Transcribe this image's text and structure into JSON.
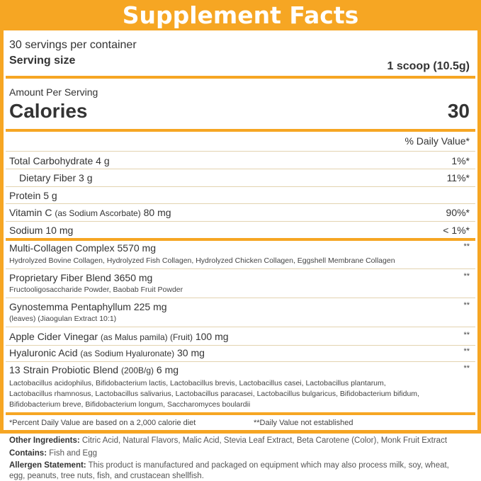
{
  "title": "Supplement Facts",
  "servings_per_container": "30 servings per container",
  "serving_size_label": "Serving size",
  "serving_size_value": "1 scoop (10.5g)",
  "amount_per_serving": "Amount Per Serving",
  "calories_label": "Calories",
  "calories_value": "30",
  "dv_header": "% Daily Value*",
  "nutrients": [
    {
      "name": "Total Carbohydrate 4 g",
      "dv": "1%*"
    },
    {
      "name": "Dietary Fiber 3 g",
      "dv": "11%*"
    },
    {
      "name": "Protein 5 g",
      "dv": ""
    },
    {
      "name": "Vitamin C",
      "detail": "(as Sodium Ascorbate)",
      "amount": "80 mg",
      "dv": "90%*"
    },
    {
      "name": "Sodium 10 mg",
      "dv": "< 1%*"
    }
  ],
  "blends": [
    {
      "name": "Multi-Collagen Complex 5570 mg",
      "dv": "**",
      "sub": [
        "Hydrolyzed Bovine Collagen, Hydrolyzed Fish Collagen, Hydrolyzed Chicken Collagen, Eggshell Membrane Collagen"
      ]
    },
    {
      "name": "Proprietary Fiber Blend 3650 mg",
      "dv": "**",
      "sub": [
        "Fructooligosaccharide Powder, Baobab Fruit Powder"
      ]
    },
    {
      "name": "Gynostemma Pentaphyllum 225 mg",
      "dv": "**",
      "sub": [
        "(leaves) (Jiaogulan Extract 10:1)"
      ]
    },
    {
      "name": "Apple Cider Vinegar",
      "detail": "(as Malus pamila) (Fruit)",
      "amount": "100 mg",
      "dv": "**"
    },
    {
      "name": "Hyaluronic Acid",
      "detail": "(as Sodium Hyaluronate)",
      "amount": "30 mg",
      "dv": "**"
    },
    {
      "name": "13 Strain Probiotic Blend",
      "detail": "(200B/g)",
      "amount": "6 mg",
      "dv": "**",
      "sub": [
        "Lactobacillus acidophilus, Bifidobacterium lactis, Lactobacillus brevis, Lactobacillus casei, Lactobacillus plantarum,",
        "Lactobacillus rhamnosus, Lactobacillus salivarius, Lactobacillus paracasei, Lactobacillus bulgaricus, Bifidobacterium bifidum,",
        "Bifidobacterium breve, Bifidobacterium longum, Saccharomyces boulardii"
      ]
    }
  ],
  "footnote_1": "*Percent Daily Value are based on a 2,000 calorie diet",
  "footnote_2": "**Daily Value not established",
  "other_ingredients_label": "Other Ingredients:",
  "other_ingredients": "Citric Acid, Natural Flavors, Malic Acid, Stevia Leaf Extract, Beta Carotene (Color), Monk Fruit Extract",
  "contains_label": "Contains:",
  "contains": "Fish and Egg",
  "allergen_label": "Allergen Statement:",
  "allergen_line1": "This product is manufactured and packaged on equipment which may also process milk, soy, wheat,",
  "allergen_line2": "egg, peanuts, tree nuts, fish, and crustacean shellfish.",
  "colors": {
    "accent": "#F6A623",
    "text": "#333333"
  }
}
